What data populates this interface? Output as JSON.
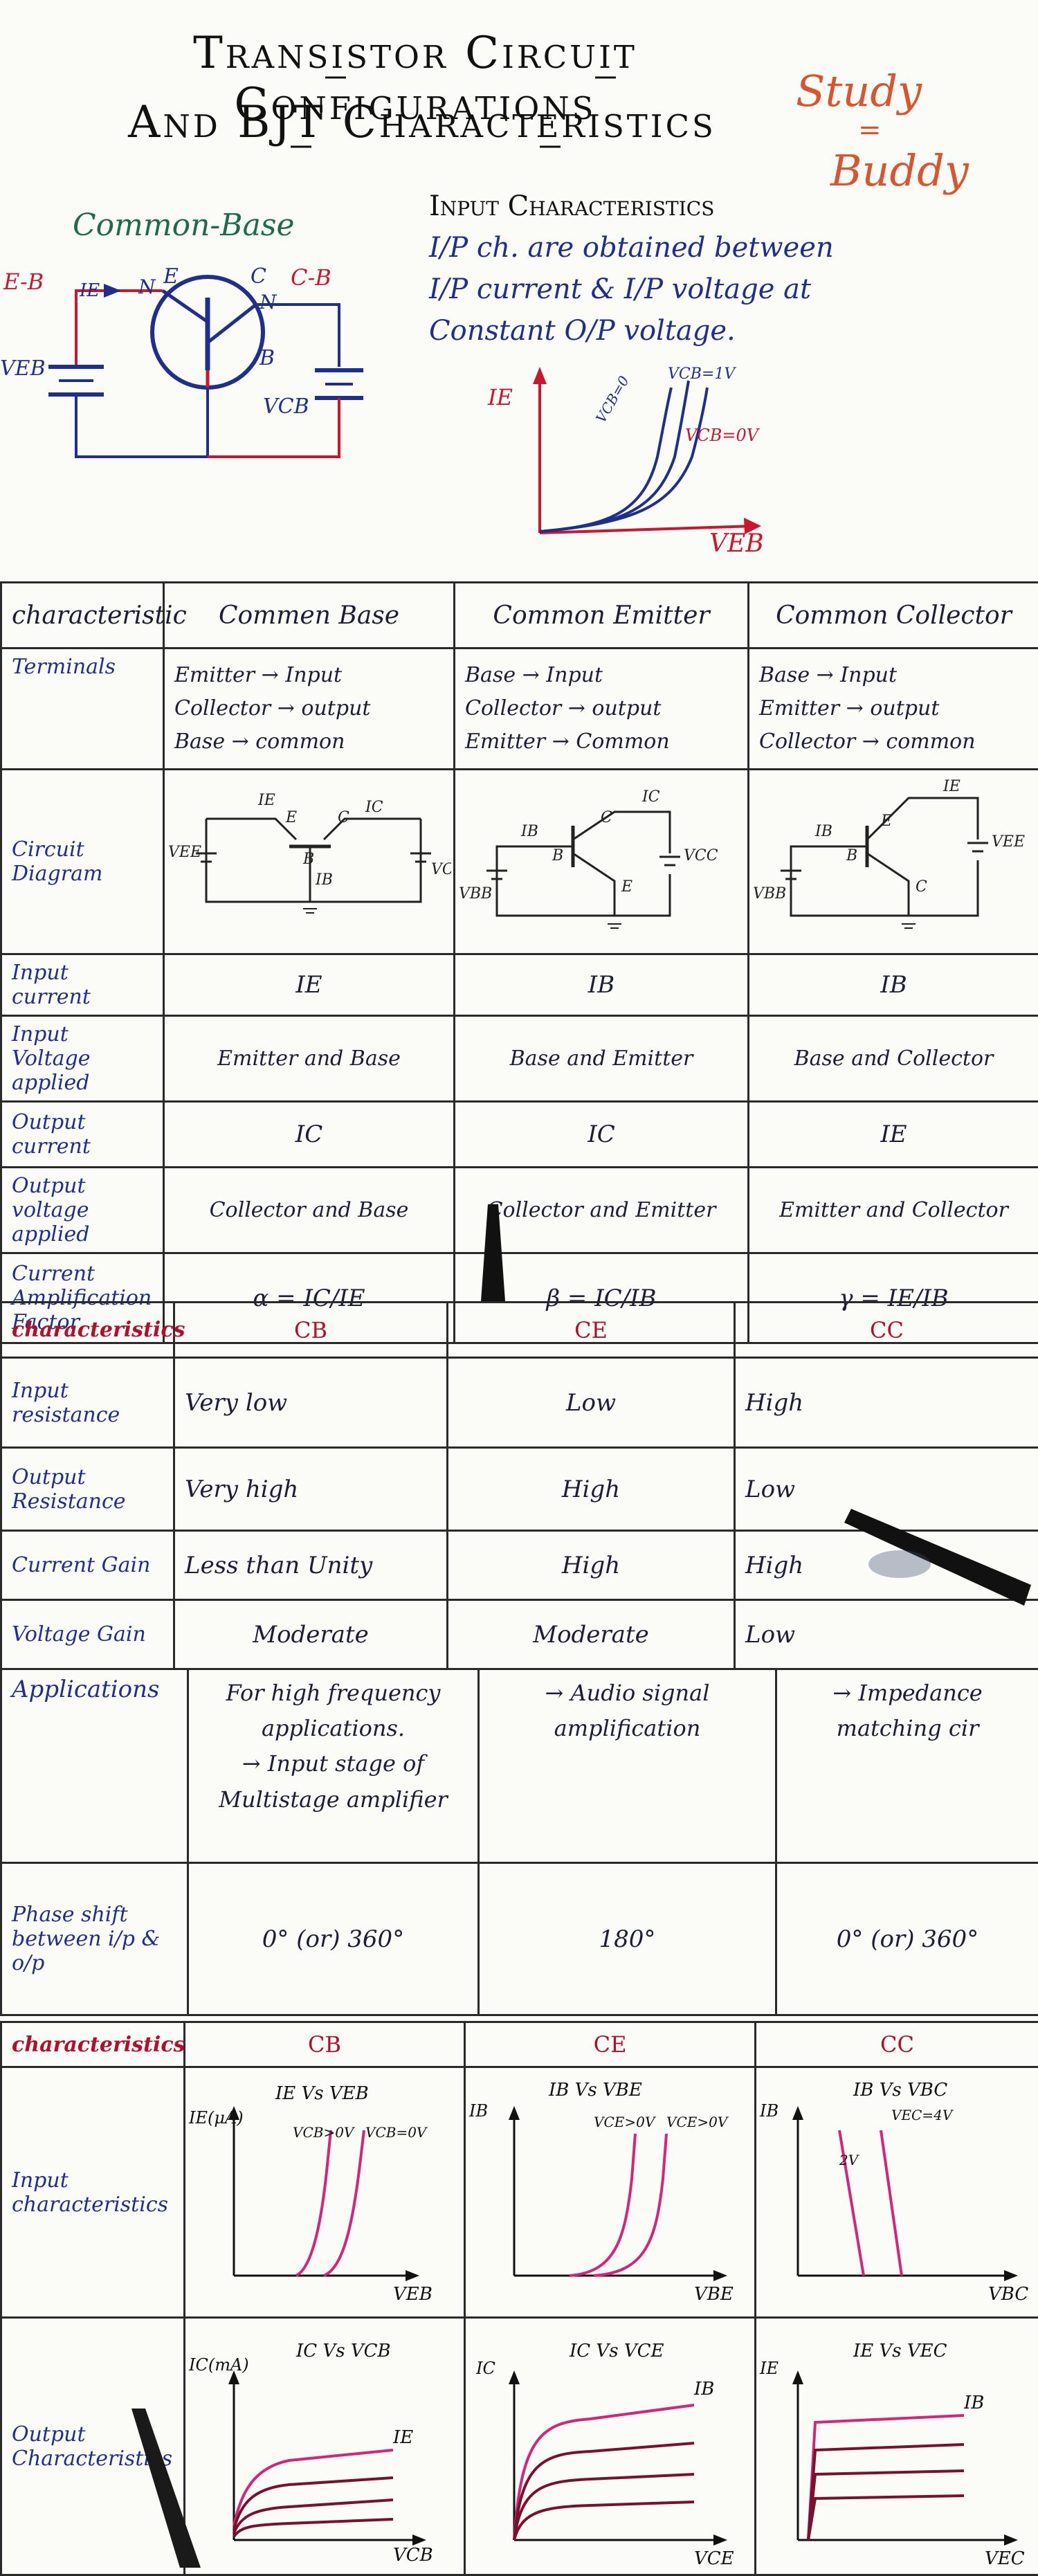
{
  "title": {
    "line1": "Transistor Circuit Configurations",
    "line2": "And BJT Characteristics"
  },
  "brand": {
    "line1": "Study",
    "eq": "=",
    "line2": "Buddy"
  },
  "top_diagram": {
    "heading": "Common-Base",
    "labels": {
      "eb": "E-B",
      "ie": "IE",
      "n1": "N",
      "e": "E",
      "c": "C",
      "n2": "N",
      "cb": "C-B",
      "b": "B",
      "veb": "VEB",
      "vcb": "VCB"
    }
  },
  "input_char": {
    "heading": "Input Characteristics",
    "text1": "I/P ch. are obtained between",
    "text2": "I/P current & I/P voltage at",
    "text3": "Constant O/P voltage.",
    "y_axis": "IE",
    "x_axis": "VEB",
    "curve_labels": [
      "VCB=0",
      "VCB=1V",
      "VCB=0V"
    ]
  },
  "table1": {
    "headers": [
      "characteristic",
      "Commen Base",
      "Common Emitter",
      "Common Collector"
    ],
    "terminals": {
      "label": "Terminals",
      "cb": [
        "Emitter → Input",
        "Collector → output",
        "Base → common"
      ],
      "ce": [
        "Base → Input",
        "Collector → output",
        "Emitter → Common"
      ],
      "cc": [
        "Base → Input",
        "Emitter → output",
        "Collector → common"
      ]
    },
    "circuit": {
      "label": "Circuit Diagram",
      "cb": {
        "ie": "IE",
        "e": "E",
        "c": "C",
        "ic": "IC",
        "b": "B",
        "ib": "IB",
        "vee": "VEE",
        "vcc": "VCC"
      },
      "ce": {
        "ic": "IC",
        "c": "C",
        "ib": "IB",
        "b": "B",
        "e": "E",
        "vbb": "VBB",
        "vcc": "VCC"
      },
      "cc": {
        "ie": "IE",
        "e": "E",
        "ib": "IB",
        "b": "B",
        "c": "C",
        "vbb": "VBB",
        "vee": "VEE"
      }
    },
    "rows": [
      {
        "label": "Input current",
        "cb": "IE",
        "ce": "IB",
        "cc": "IB"
      },
      {
        "label": "Input Voltage applied",
        "cb": "Emitter and Base",
        "ce": "Base and Emitter",
        "cc": "Base and Collector"
      },
      {
        "label": "Output current",
        "cb": "IC",
        "ce": "IC",
        "cc": "IE"
      },
      {
        "label": "Output voltage applied",
        "cb": "Collector and Base",
        "ce": "Collector and Emitter",
        "cc": "Emitter and Collector"
      },
      {
        "label": "Current Amplification Factor",
        "cb": "α = IC/IE",
        "ce": "β = IC/IB",
        "cc": "γ = IE/IB"
      }
    ]
  },
  "table2": {
    "headers": [
      "characteristics",
      "CB",
      "CE",
      "CC"
    ],
    "rows": [
      {
        "label": "Input resistance",
        "cb": "Very low",
        "ce": "Low",
        "cc": "High"
      },
      {
        "label": "Output Resistance",
        "cb": "Very high",
        "ce": "High",
        "cc": "Low"
      },
      {
        "label": "Current Gain",
        "cb": "Less than Unity",
        "ce": "High",
        "cc": "High"
      },
      {
        "label": "Voltage Gain",
        "cb": "Moderate",
        "ce": "Moderate",
        "cc": "Low"
      }
    ]
  },
  "table3": {
    "applications": {
      "label": "Applications",
      "cb": [
        "For high frequency applications.",
        "→ Input stage of Multistage amplifier"
      ],
      "ce": [
        "→ Audio signal amplification"
      ],
      "cc": [
        "→ Impedance matching cir"
      ]
    },
    "phase": {
      "label": "Phase shift between i/p & o/p",
      "cb": "0° (or) 360°",
      "ce": "180°",
      "cc": "0° (or) 360°"
    }
  },
  "table4": {
    "headers": [
      "characteristics",
      "CB",
      "CE",
      "CC"
    ],
    "input": {
      "label": "Input characteristics",
      "cb": {
        "title": "IE Vs VEB",
        "y": "IE(μA)",
        "x": "VEB",
        "c1": "VCB>0V",
        "c2": "VCB=0V"
      },
      "ce": {
        "title": "IB Vs VBE",
        "y": "IB",
        "x": "VBE",
        "c1": "VCE>0V",
        "c2": "VCE>0V"
      },
      "cc": {
        "title": "IB Vs VBC",
        "y": "IB",
        "x": "VBC",
        "c1": "2V",
        "c2": "VEC=4V"
      }
    },
    "output": {
      "label": "Output Characteristics",
      "cb": {
        "title": "IC Vs VCB",
        "y": "IC(mA)",
        "x": "VCB",
        "param": "IE"
      },
      "ce": {
        "title": "IC Vs VCE",
        "y": "IC",
        "x": "VCE",
        "param": "IB"
      },
      "cc": {
        "title": "IE Vs VEC",
        "y": "IE",
        "x": "VEC",
        "param": "IB"
      }
    }
  },
  "colors": {
    "ink": "#1d1d3a",
    "blue": "#1f2f8c",
    "red": "#c8172f",
    "brand": "#d9552f",
    "pink": "#d4257a"
  }
}
